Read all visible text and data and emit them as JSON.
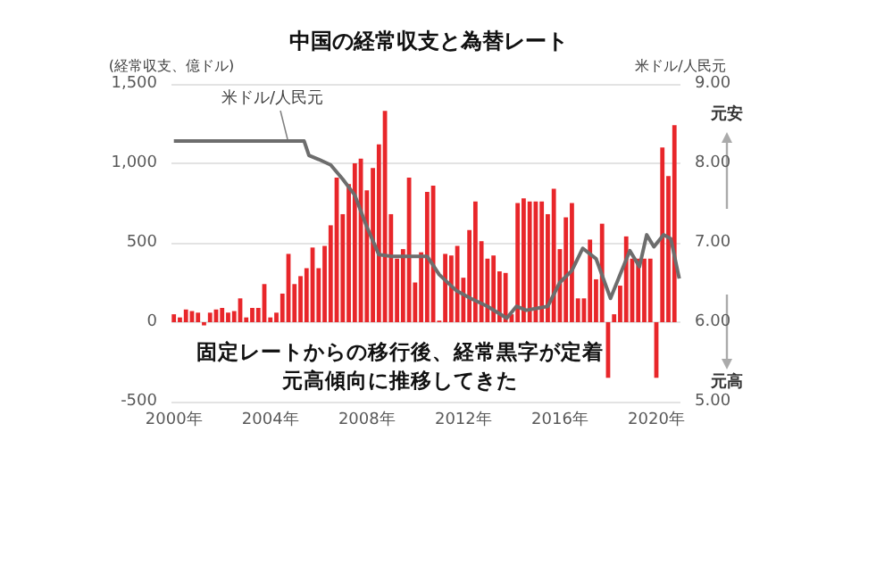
{
  "chart_data": {
    "type": "bar",
    "title": "中国の経常収支と為替レート",
    "ylabel": "(経常収支、億ドル)",
    "y2label": "米ドル/人民元",
    "annotations": [
      "米ドル/人民元",
      "元安",
      "元高",
      "固定レートからの移行後、経常黒字が定着",
      "元高傾向に推移してきた"
    ],
    "series": [
      {
        "color": "#e8262a",
        "x": [
          2000,
          2000.25,
          2000.5,
          2000.75,
          2001,
          2001.25,
          2001.5,
          2001.75,
          2002,
          2002.25,
          2002.5,
          2002.75,
          2003,
          2003.25,
          2003.5,
          2003.75,
          2004,
          2004.25,
          2004.5,
          2004.75,
          2005,
          2005.25,
          2005.5,
          2005.75,
          2006,
          2006.25,
          2006.5,
          2006.75,
          2007,
          2007.25,
          2007.5,
          2007.75,
          2008,
          2008.25,
          2008.5,
          2008.75,
          2009,
          2009.25,
          2009.5,
          2009.75,
          2010,
          2010.25,
          2010.5,
          2010.75,
          2011,
          2011.25,
          2011.5,
          2011.75,
          2012,
          2012.25,
          2012.5,
          2012.75,
          2013,
          2013.25,
          2013.5,
          2013.75,
          2014,
          2014.25,
          2014.5,
          2014.75,
          2015,
          2015.25,
          2015.5,
          2015.75,
          2016,
          2016.25,
          2016.5,
          2016.75,
          2017,
          2017.25,
          2017.5,
          2017.75,
          2018,
          2018.25,
          2018.5,
          2018.75,
          2019,
          2019.25,
          2019.5,
          2019.75,
          2020,
          2020.25,
          2020.5,
          2020.75
        ],
        "values": [
          50,
          30,
          80,
          70,
          60,
          -20,
          60,
          80,
          90,
          60,
          70,
          150,
          30,
          90,
          90,
          240,
          30,
          60,
          180,
          430,
          240,
          290,
          340,
          470,
          340,
          480,
          610,
          910,
          680,
          870,
          1000,
          1030,
          830,
          970,
          1120,
          1330,
          680,
          400,
          460,
          910,
          250,
          440,
          820,
          860,
          10,
          430,
          420,
          480,
          280,
          580,
          760,
          510,
          400,
          420,
          320,
          310,
          50,
          750,
          780,
          760,
          760,
          760,
          680,
          840,
          460,
          660,
          750,
          150,
          150,
          520,
          270,
          620,
          -350,
          50,
          230,
          540,
          400,
          400,
          400,
          400,
          -350,
          1100,
          920,
          1240
        ]
      },
      {
        "type": "line",
        "axis": "y2",
        "color": "#6d6d6d",
        "x": [
          2000,
          2005.4,
          2005.6,
          2006,
          2006.5,
          2007,
          2007.5,
          2008,
          2008.5,
          2009,
          2010.5,
          2011,
          2011.7,
          2012.3,
          2013,
          2013.8,
          2014.2,
          2014.6,
          2015.5,
          2016,
          2016.5,
          2016.95,
          2017.5,
          2018.1,
          2018.5,
          2018.9,
          2019.3,
          2019.6,
          2019.9,
          2020.3,
          2020.6,
          2020.95
        ],
        "values": [
          8.28,
          8.28,
          8.1,
          8.05,
          7.98,
          7.8,
          7.6,
          7.2,
          6.85,
          6.83,
          6.83,
          6.6,
          6.4,
          6.3,
          6.2,
          6.05,
          6.2,
          6.15,
          6.2,
          6.5,
          6.65,
          6.93,
          6.8,
          6.3,
          6.6,
          6.9,
          6.7,
          7.1,
          6.95,
          7.1,
          7.05,
          6.55
        ]
      }
    ],
    "xlim": [
      1999.9,
      2021
    ],
    "xticks": [
      {
        "value": 2000,
        "label": "2000年"
      },
      {
        "value": 2004,
        "label": "2004年"
      },
      {
        "value": 2008,
        "label": "2008年"
      },
      {
        "value": 2012,
        "label": "2012年"
      },
      {
        "value": 2016,
        "label": "2016年"
      },
      {
        "value": 2020,
        "label": "2020年"
      }
    ],
    "ylim": [
      -500,
      1500
    ],
    "yticks": [
      -500,
      0,
      500,
      {
        "value": 1000,
        "label": "1,000"
      },
      {
        "value": 1500,
        "label": "1,500"
      }
    ],
    "y2lim": [
      5,
      9
    ],
    "y2ticks": [
      {
        "value": 5,
        "label": "5.00"
      },
      {
        "value": 6,
        "label": "6.00"
      },
      {
        "value": 7,
        "label": "7.00"
      },
      {
        "value": 8,
        "label": "8.00"
      },
      {
        "value": 9,
        "label": "9.00"
      }
    ],
    "grid": "y"
  }
}
